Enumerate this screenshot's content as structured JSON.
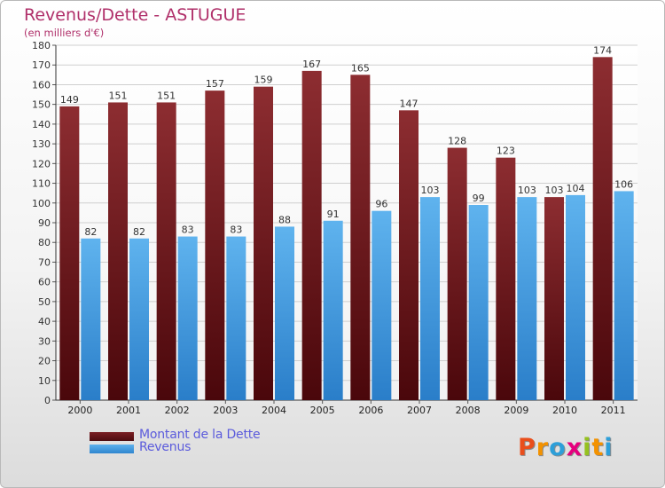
{
  "chart_data": {
    "type": "bar",
    "title": "Revenus/Dette - ASTUGUE",
    "subtitle": "(en milliers d'€)",
    "categories": [
      "2000",
      "2001",
      "2002",
      "2003",
      "2004",
      "2005",
      "2006",
      "2007",
      "2008",
      "2009",
      "2010",
      "2011"
    ],
    "series": [
      {
        "name": "Montant de la Dette",
        "values": [
          149,
          151,
          151,
          157,
          159,
          167,
          165,
          147,
          128,
          123,
          103,
          174
        ],
        "color": "#8b2a2e"
      },
      {
        "name": "Revenus",
        "values": [
          82,
          82,
          83,
          83,
          88,
          91,
          96,
          103,
          99,
          103,
          104,
          106
        ],
        "color": "#4fa3e3"
      }
    ],
    "ylim": [
      0,
      180
    ],
    "yticks": [
      0,
      10,
      20,
      30,
      40,
      50,
      60,
      70,
      80,
      90,
      100,
      110,
      120,
      130,
      140,
      150,
      160,
      170,
      180
    ],
    "grid": true,
    "legend_position": "bottom-left"
  },
  "logo": {
    "text": "Proxiti",
    "letters": [
      {
        "ch": "P",
        "color": "#e94e1b"
      },
      {
        "ch": "r",
        "color": "#f39200"
      },
      {
        "ch": "o",
        "color": "#2d9fd9"
      },
      {
        "ch": "x",
        "color": "#e6007e"
      },
      {
        "ch": "i",
        "color": "#95c11f"
      },
      {
        "ch": "t",
        "color": "#f39200"
      },
      {
        "ch": "i",
        "color": "#2d9fd9"
      }
    ]
  }
}
